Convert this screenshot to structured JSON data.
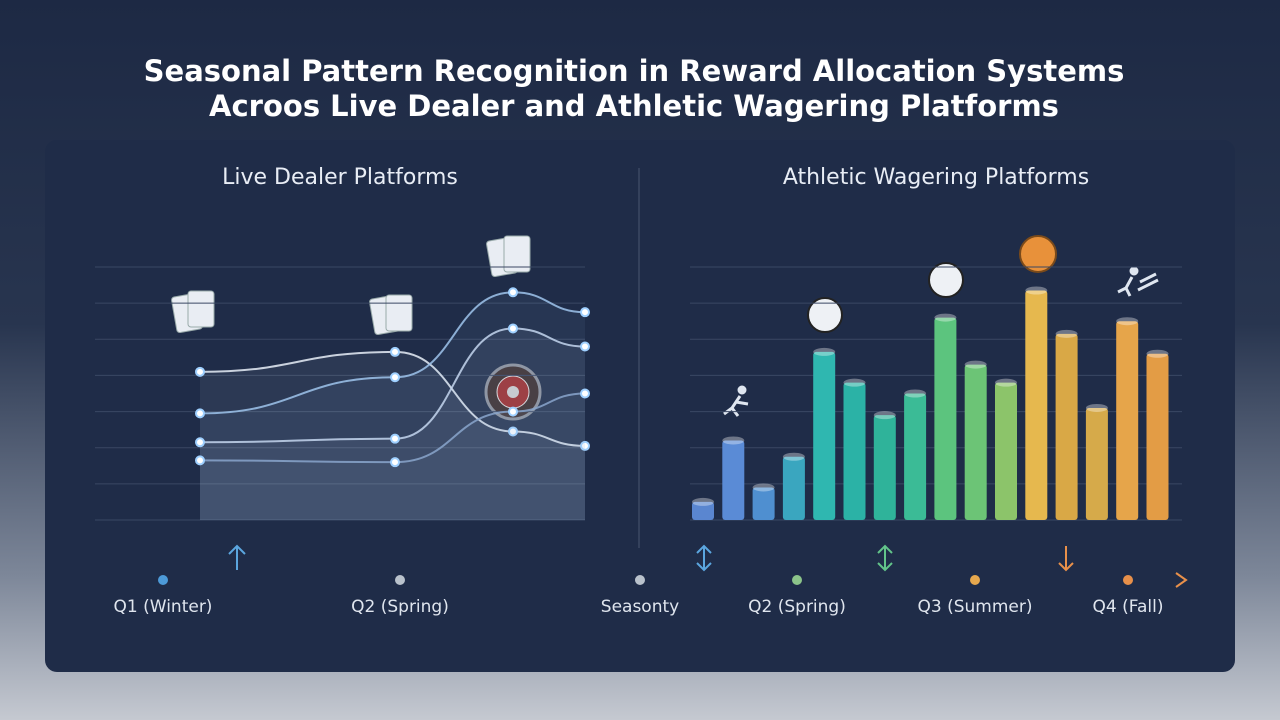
{
  "header": {
    "title_lines": [
      "Seasonal Pattern Recognition in Reward Allocation Systems",
      "Acroos Live Dealer and Athletic Wagering Platforms"
    ]
  },
  "chart_data": [
    {
      "type": "line",
      "title": "Live Dealer Platforms",
      "categories": [
        null,
        null,
        null,
        null
      ],
      "series": [
        {
          "color": "#e8eef8",
          "values": [
            4.1,
            4.65,
            2.45,
            2.05
          ]
        },
        {
          "color": "#9fc4ec",
          "values": [
            2.95,
            3.95,
            6.3,
            5.75
          ]
        },
        {
          "color": "#c4d6ee",
          "values": [
            2.15,
            2.25,
            5.3,
            4.8
          ]
        },
        {
          "color": "#8aa6cc",
          "values": [
            1.65,
            1.6,
            3.0,
            3.5
          ]
        }
      ],
      "ylim": [
        0,
        7
      ],
      "yticks": [
        0,
        1,
        2,
        3,
        4,
        5,
        6,
        7
      ],
      "grid": true
    },
    {
      "type": "bar",
      "title": "Athletic Wagering Platforms",
      "categories": [
        null,
        null,
        null,
        null,
        null,
        null,
        null,
        null,
        null,
        null,
        null,
        null,
        null,
        null,
        null,
        null
      ],
      "values": [
        0.5,
        2.2,
        0.9,
        1.75,
        4.65,
        3.8,
        2.9,
        3.5,
        5.6,
        4.3,
        3.8,
        6.35,
        5.15,
        3.1,
        5.5,
        4.6
      ],
      "colors": [
        "#5a86d0",
        "#5a8bd6",
        "#4f8fd0",
        "#3aa6bf",
        "#2fb7b0",
        "#2bb2a6",
        "#2fb39a",
        "#3bbb96",
        "#5cc47e",
        "#6cc476",
        "#8cc46a",
        "#e6b84e",
        "#d9a846",
        "#d6aa4a",
        "#e6a54a",
        "#e39c45"
      ],
      "ylim": [
        0,
        7
      ],
      "yticks": [
        0,
        1,
        2,
        3,
        4,
        5,
        6,
        7
      ],
      "grid": true
    }
  ],
  "timeline": {
    "labels": [
      "Q1 (Winter)",
      "Q2 (Spring)",
      "Seasonty",
      "Q2 (Spring)",
      "Q3 (Summer)",
      "Q4 (Fall)"
    ]
  }
}
